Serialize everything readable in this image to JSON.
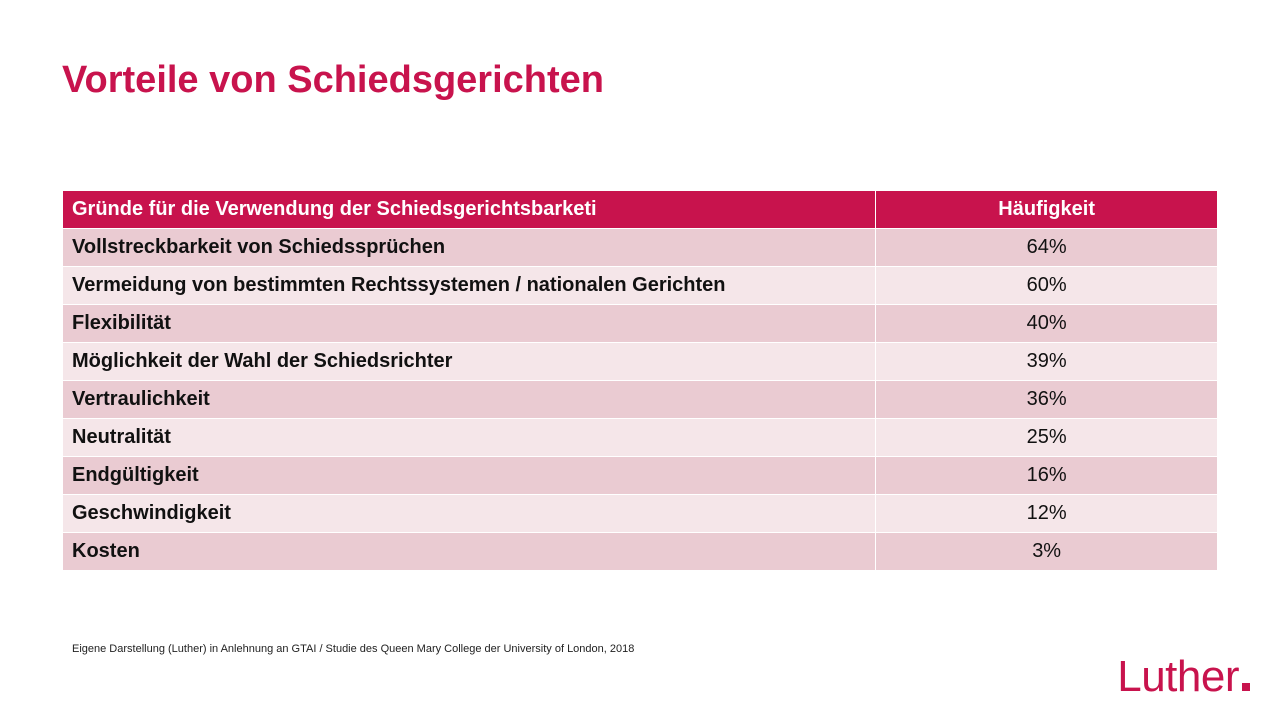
{
  "title": "Vorteile von Schiedsgerichten",
  "table": {
    "headers": {
      "reason": "Gründe für die Verwendung der Schiedsgerichtsbarketi",
      "frequency": "Häufigkeit"
    },
    "rows": [
      {
        "reason": "Vollstreckbarkeit von Schiedssprüchen",
        "frequency": "64%"
      },
      {
        "reason": "Vermeidung von bestimmten Rechtssystemen / nationalen Gerichten",
        "frequency": "60%"
      },
      {
        "reason": "Flexibilität",
        "frequency": "40%"
      },
      {
        "reason": "Möglichkeit der Wahl der Schiedsrichter",
        "frequency": "39%"
      },
      {
        "reason": "Vertraulichkeit",
        "frequency": "36%"
      },
      {
        "reason": "Neutralität",
        "frequency": "25%"
      },
      {
        "reason": "Endgültigkeit",
        "frequency": "16%"
      },
      {
        "reason": "Geschwindigkeit",
        "frequency": "12%"
      },
      {
        "reason": "Kosten",
        "frequency": "3%"
      }
    ]
  },
  "source_note": "Eigene Darstellung (Luther) in Anlehnung an GTAI / Studie des Queen Mary  College der University of London, 2018",
  "logo": {
    "text": "Luther",
    "color": "#c8134d"
  },
  "colors": {
    "accent": "#c8134d",
    "row_dark": "#eacbd2",
    "row_light": "#f5e6e9"
  }
}
